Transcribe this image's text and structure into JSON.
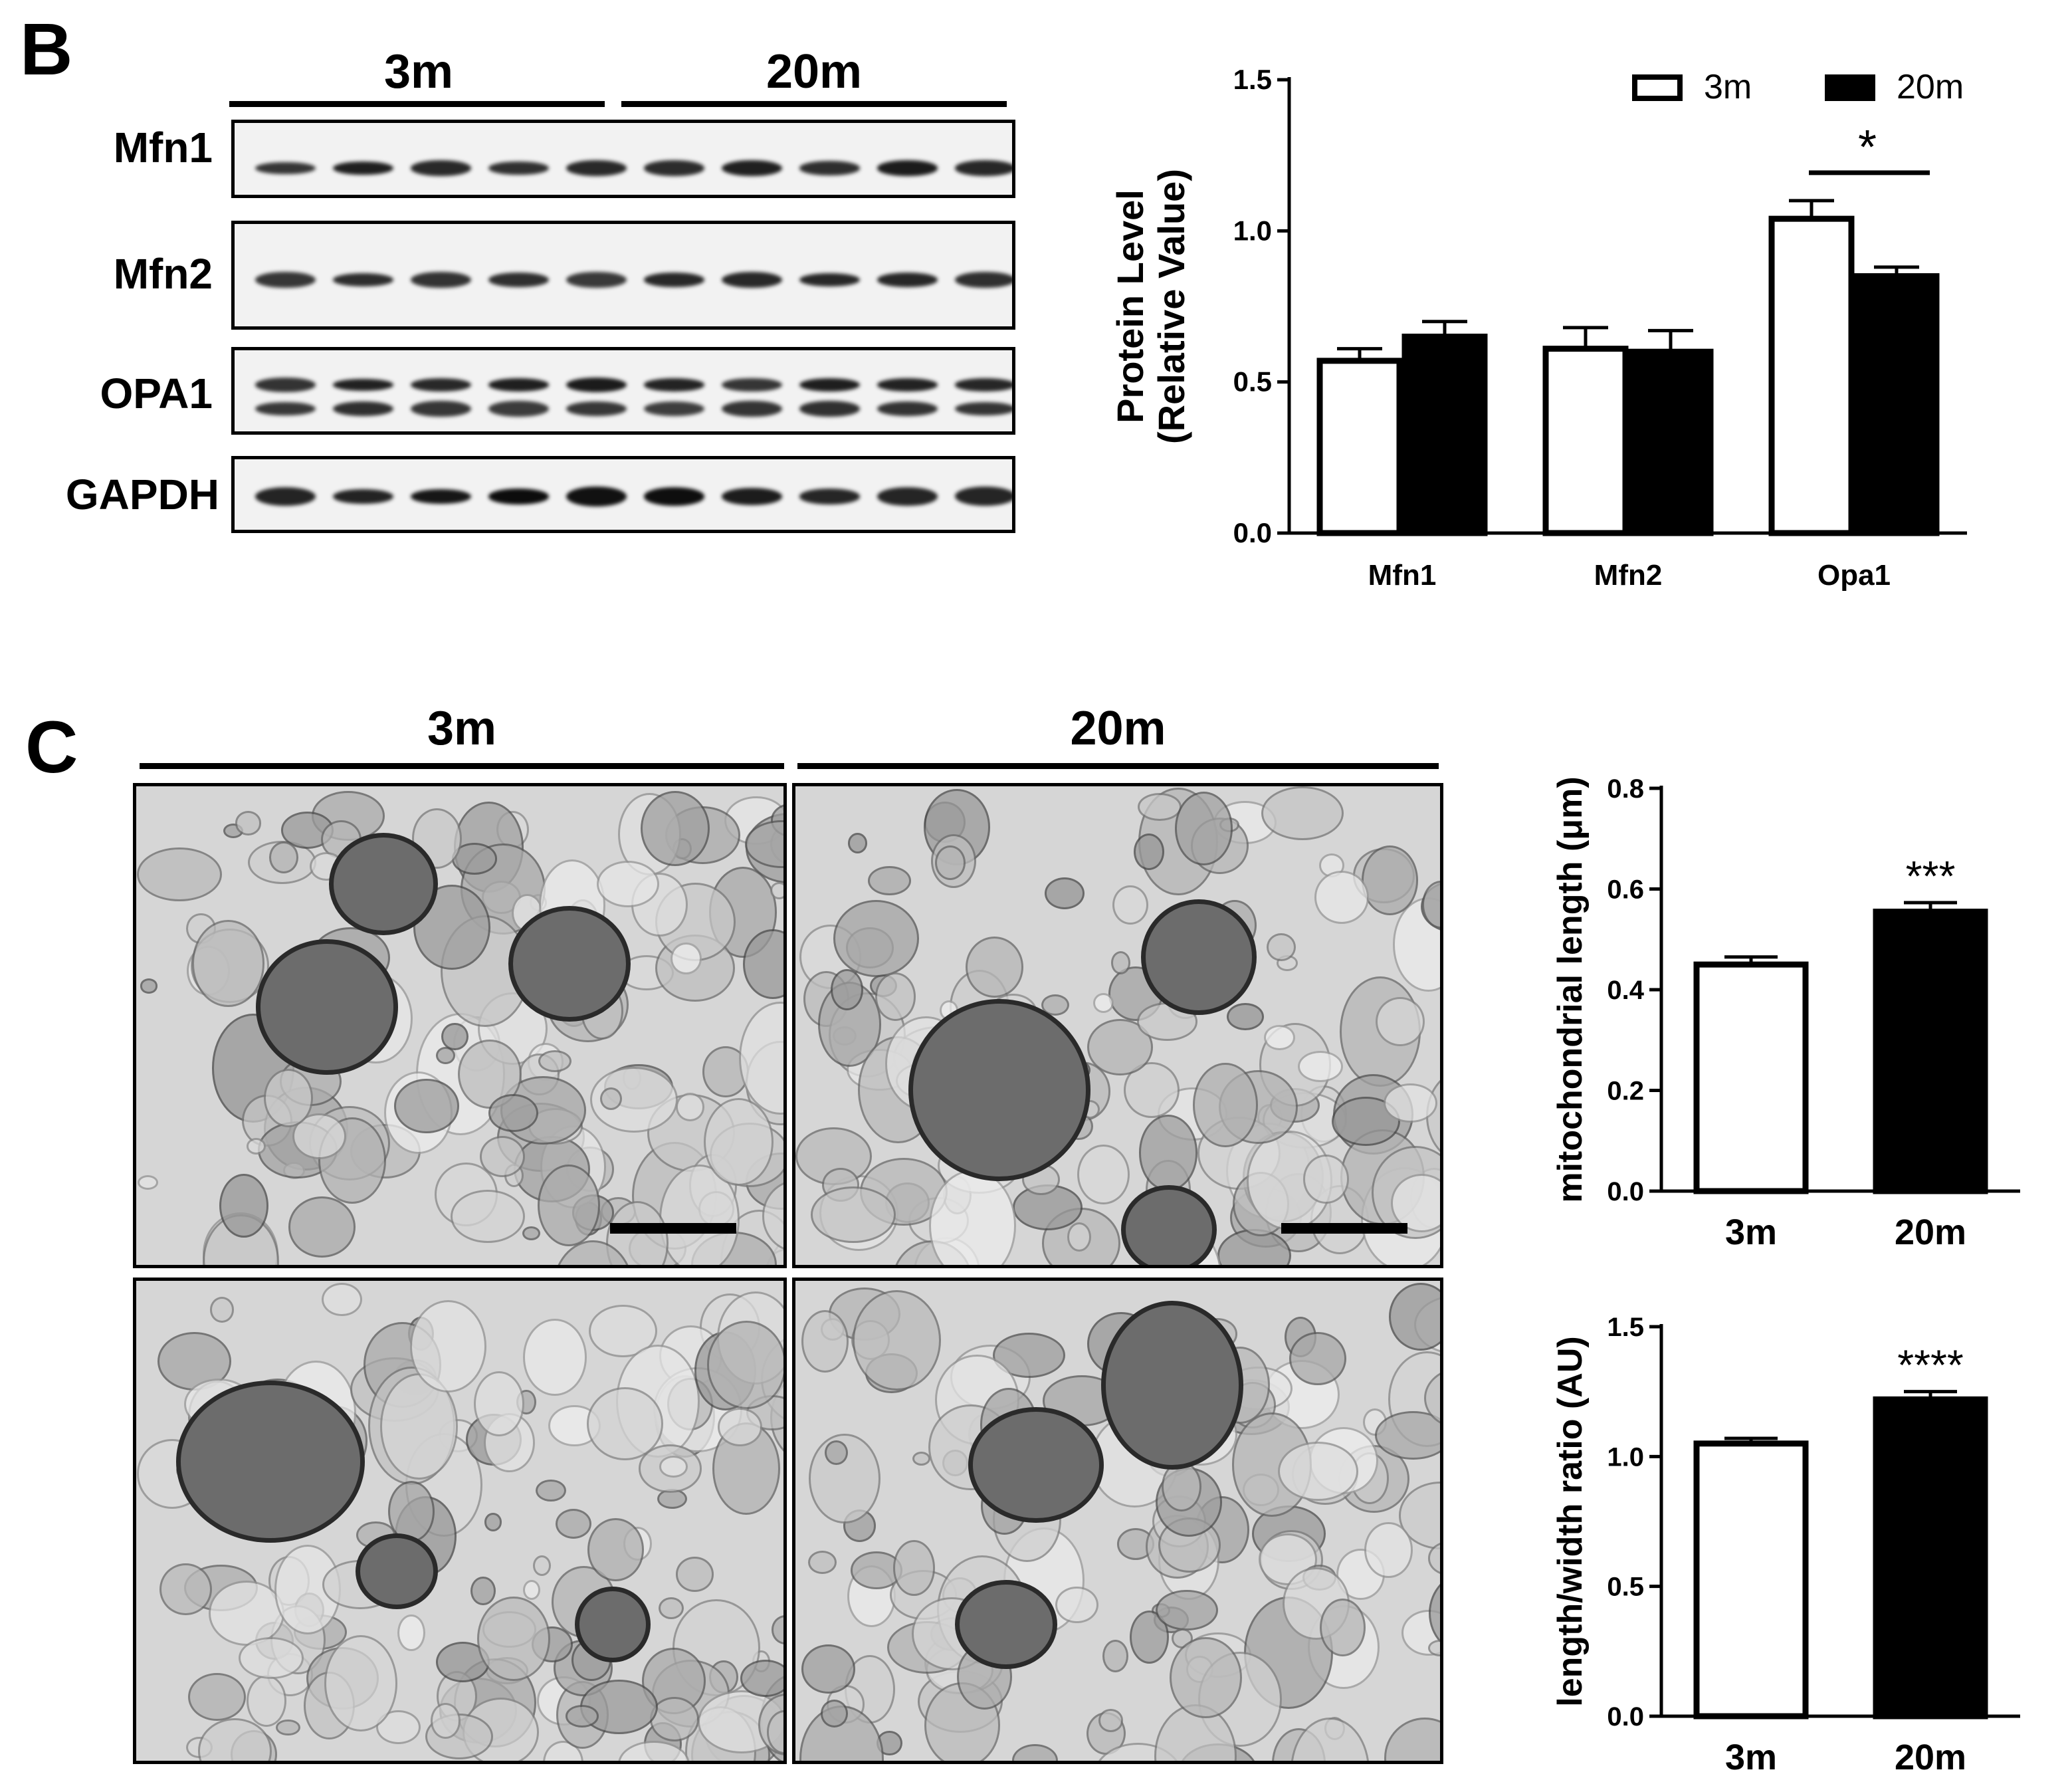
{
  "panel_b": {
    "letter": "B",
    "groups": [
      "3m",
      "20m"
    ],
    "blot_labels": [
      "Mfn1",
      "Mfn2",
      "OPA1",
      "GAPDH"
    ]
  },
  "panel_c": {
    "letter": "C",
    "groups": [
      "3m",
      "20m"
    ]
  },
  "colors": {
    "group_3m": "#ffffff",
    "group_20m": "#000000",
    "stroke": "#000000"
  },
  "chart_data": [
    {
      "type": "bar",
      "categories": [
        "Mfn1",
        "Mfn2",
        "Opa1"
      ],
      "series": [
        {
          "name": "3m",
          "values": [
            0.57,
            0.61,
            1.04
          ],
          "errors": [
            0.04,
            0.07,
            0.06
          ]
        },
        {
          "name": "20m",
          "values": [
            0.65,
            0.6,
            0.85
          ],
          "errors": [
            0.05,
            0.07,
            0.03
          ]
        }
      ],
      "ylabel_line1": "Protein Level",
      "ylabel_line2": "(Relative Value)",
      "ylim": [
        0,
        1.5
      ],
      "yticks": [
        "0.0",
        "0.5",
        "1.0",
        "1.5"
      ],
      "significance": [
        {
          "category": "Opa1",
          "label": "*"
        }
      ],
      "legend": "top-right",
      "grid": false
    },
    {
      "type": "bar",
      "categories": [
        "3m",
        "20m"
      ],
      "values": [
        0.45,
        0.555
      ],
      "errors": [
        0.015,
        0.018
      ],
      "ylabel": "mitochondrial length (μm)",
      "ylim": [
        0,
        0.8
      ],
      "yticks": [
        "0.0",
        "0.2",
        "0.4",
        "0.6",
        "0.8"
      ],
      "significance": [
        {
          "category": "20m",
          "label": "***"
        }
      ],
      "grid": false
    },
    {
      "type": "bar",
      "categories": [
        "3m",
        "20m"
      ],
      "values": [
        1.05,
        1.22
      ],
      "errors": [
        0.02,
        0.03
      ],
      "ylabel": "length/width ratio (AU)",
      "ylim": [
        0,
        1.5
      ],
      "yticks": [
        "0.0",
        "0.5",
        "1.0",
        "1.5"
      ],
      "significance": [
        {
          "category": "20m",
          "label": "****"
        }
      ],
      "grid": false
    }
  ]
}
